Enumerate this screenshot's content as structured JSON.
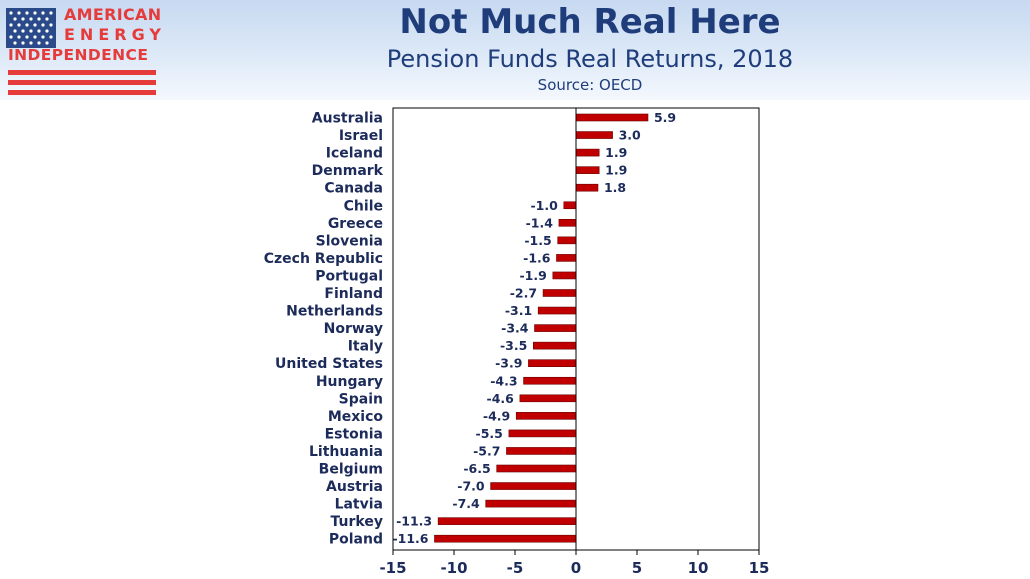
{
  "header": {
    "title": "Not Much Real Here",
    "subtitle": "Pension Funds Real Returns, 2018",
    "source": "Source: OECD"
  },
  "logo": {
    "line1": "AMERICAN",
    "line2": "ENERGY",
    "line3": "INDEPENDENCE"
  },
  "colors": {
    "bar": "#c00000",
    "bar_stroke": "#6b0000",
    "text": "#1c2b5a",
    "brand_red": "#e53b3b",
    "brand_blue": "#1f3d7a"
  },
  "chart_data": {
    "type": "bar",
    "orientation": "horizontal",
    "categories": [
      "Australia",
      "Israel",
      "Iceland",
      "Denmark",
      "Canada",
      "Chile",
      "Greece",
      "Slovenia",
      "Czech Republic",
      "Portugal",
      "Finland",
      "Netherlands",
      "Norway",
      "Italy",
      "United States",
      "Hungary",
      "Spain",
      "Mexico",
      "Estonia",
      "Lithuania",
      "Belgium",
      "Austria",
      "Latvia",
      "Turkey",
      "Poland"
    ],
    "values": [
      5.9,
      3.0,
      1.9,
      1.9,
      1.8,
      -1.0,
      -1.4,
      -1.5,
      -1.6,
      -1.9,
      -2.7,
      -3.1,
      -3.4,
      -3.5,
      -3.9,
      -4.3,
      -4.6,
      -4.9,
      -5.5,
      -5.7,
      -6.5,
      -7.0,
      -7.4,
      -11.3,
      -11.6
    ],
    "value_labels": [
      "5.9",
      "3.0",
      "1.9",
      "1.9",
      "1.8",
      "-1.0",
      "-1.4",
      "-1.5",
      "-1.6",
      "-1.9",
      "-2.7",
      "-3.1",
      "-3.4",
      "-3.5",
      "-3.9",
      "-4.3",
      "-4.6",
      "-4.9",
      "-5.5",
      "-5.7",
      "-6.5",
      "-7.0",
      "-7.4",
      "-11.3",
      "-11.6"
    ],
    "xlim": [
      -15,
      15
    ],
    "xticks": [
      -15,
      -10,
      -5,
      0,
      5,
      10,
      15
    ],
    "xtick_labels": [
      "-15",
      "-10",
      "-5",
      "0",
      "5",
      "10",
      "15"
    ],
    "grid": false,
    "legend": "none"
  }
}
